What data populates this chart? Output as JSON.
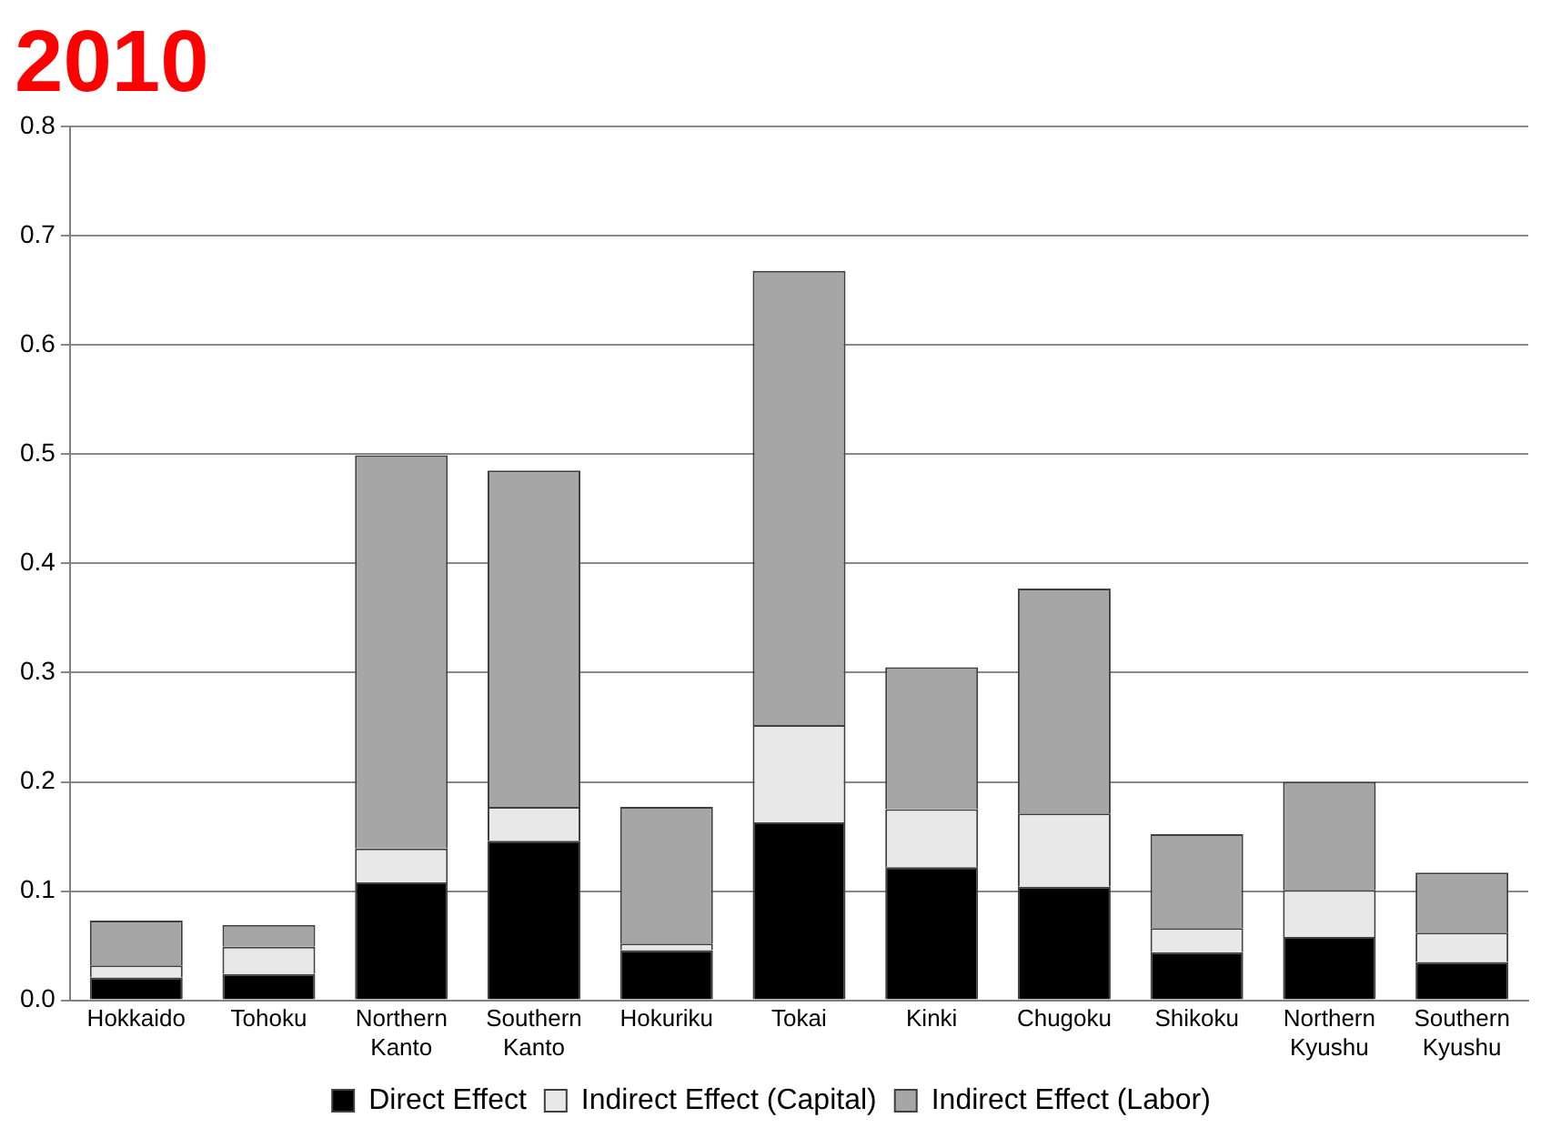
{
  "chart_data": {
    "type": "bar",
    "title": "2010",
    "stacked": true,
    "categories": [
      "Hokkaido",
      "Tohoku",
      "Northern Kanto",
      "Southern Kanto",
      "Hokuriku",
      "Tokai",
      "Kinki",
      "Chugoku",
      "Shikoku",
      "Northern Kyushu",
      "Southern Kyushu"
    ],
    "series": [
      {
        "name": "Direct Effect",
        "color": "#000000",
        "values": [
          0.021,
          0.024,
          0.108,
          0.146,
          0.046,
          0.163,
          0.122,
          0.104,
          0.044,
          0.058,
          0.035
        ]
      },
      {
        "name": "Indirect Effect (Capital)",
        "color": "#e8e8e8",
        "values": [
          0.011,
          0.025,
          0.031,
          0.031,
          0.006,
          0.089,
          0.053,
          0.067,
          0.022,
          0.043,
          0.027
        ]
      },
      {
        "name": "Indirect Effect (Labor)",
        "color": "#a6a6a6",
        "values": [
          0.041,
          0.02,
          0.36,
          0.308,
          0.125,
          0.416,
          0.13,
          0.206,
          0.086,
          0.099,
          0.055
        ]
      }
    ],
    "ylim": [
      0,
      0.8
    ],
    "yticks": [
      {
        "value": 0,
        "label": "0.0"
      },
      {
        "value": 0.1,
        "label": "0.1"
      },
      {
        "value": 0.2,
        "label": "0.2"
      },
      {
        "value": 0.3,
        "label": "0.3"
      },
      {
        "value": 0.4,
        "label": "0.4"
      },
      {
        "value": 0.5,
        "label": "0.5"
      },
      {
        "value": 0.6,
        "label": "0.6"
      },
      {
        "value": 0.7,
        "label": "0.7"
      },
      {
        "value": 0.8,
        "label": "0.8"
      }
    ],
    "grid": "y",
    "legend": "bottom"
  }
}
